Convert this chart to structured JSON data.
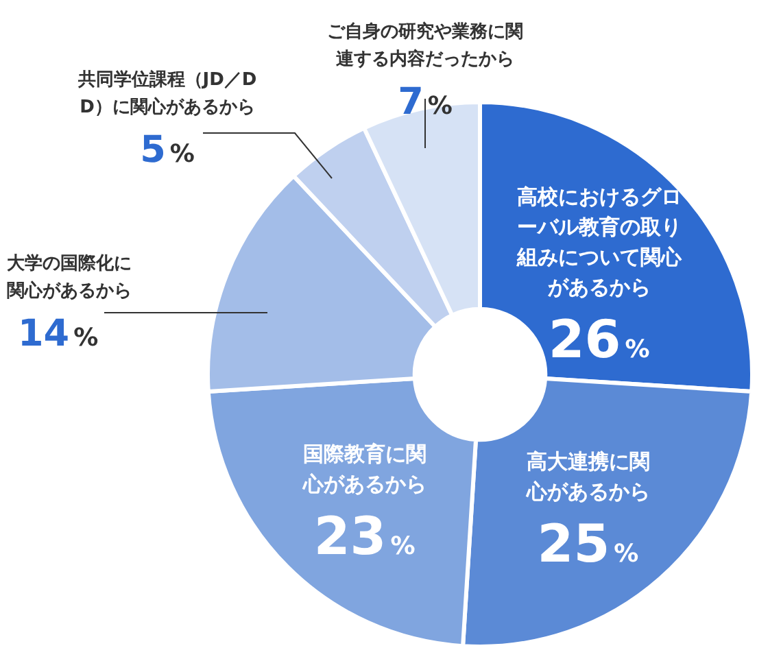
{
  "chart_data": {
    "type": "donut",
    "categories": [
      "高校におけるグローバル教育の取り組みについて関心があるから",
      "高大連携に関心があるから",
      "国際教育に関心があるから",
      "大学の国際化に関心があるから",
      "共同学位課程（JD／DD）に関心があるから",
      "ご自身の研究や業務に関連する内容だったから"
    ],
    "values": [
      26,
      25,
      23,
      14,
      5,
      7
    ],
    "colors": [
      "#2e6bd0",
      "#5b8ad6",
      "#80a5df",
      "#a3bde8",
      "#bfd0ef",
      "#d6e2f5"
    ],
    "value_labels": [
      "26%",
      "25%",
      "23%",
      "14%",
      "5%",
      "7%"
    ],
    "legend": false
  }
}
